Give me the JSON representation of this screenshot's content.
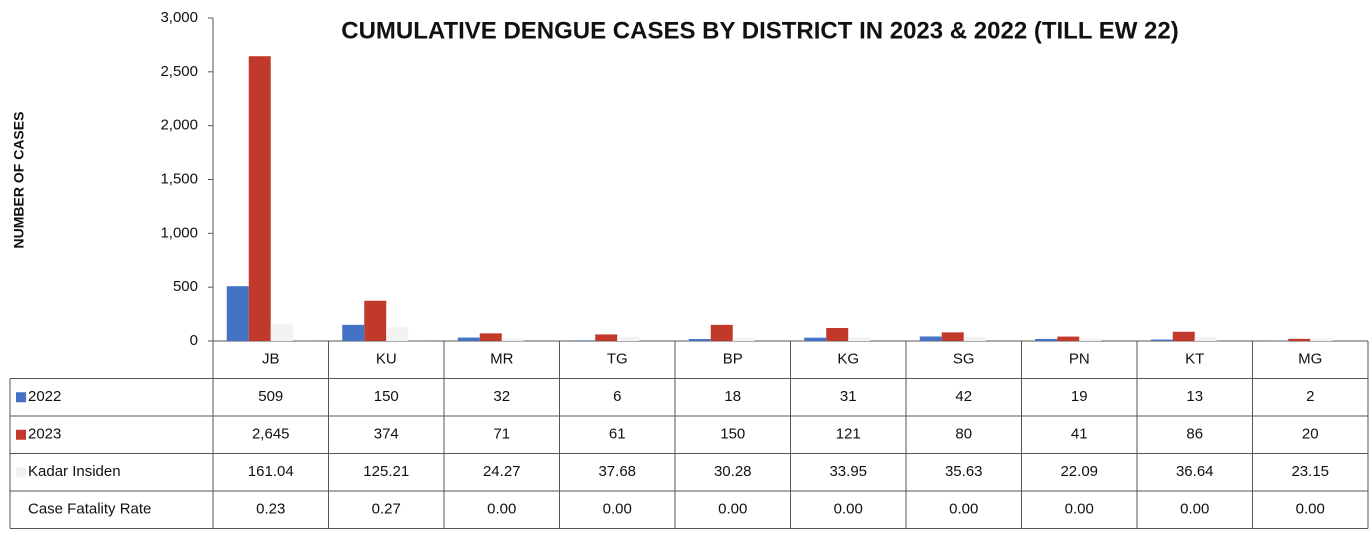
{
  "chart_data": {
    "type": "bar",
    "title": "CUMULATIVE DENGUE CASES BY DISTRICT IN 2023 & 2022 (TILL EW 22)",
    "y_label": "NUMBER OF CASES",
    "categories": [
      "JB",
      "KU",
      "MR",
      "TG",
      "BP",
      "KG",
      "SG",
      "PN",
      "KT",
      "MG"
    ],
    "series": [
      {
        "name": "2022",
        "color": "#4472c4",
        "values": [
          509,
          150,
          32,
          6,
          18,
          31,
          42,
          19,
          13,
          2
        ]
      },
      {
        "name": "2023",
        "color": "#c0392b",
        "values": [
          2645,
          374,
          71,
          61,
          150,
          121,
          80,
          41,
          86,
          20
        ],
        "value_labels": [
          "2,645",
          "374",
          "71",
          "61",
          "150",
          "121",
          "80",
          "41",
          "86",
          "20"
        ]
      },
      {
        "name": "Kadar Insiden",
        "color": "#f2f2f2",
        "values": [
          161.04,
          125.21,
          24.27,
          37.68,
          30.28,
          33.95,
          35.63,
          22.09,
          36.64,
          23.15
        ]
      },
      {
        "name": "Case Fatality Rate",
        "color": "#ffffff",
        "values": [
          0.23,
          0.27,
          0,
          0,
          0,
          0,
          0,
          0,
          0,
          0
        ],
        "value_labels": [
          "0.23",
          "0.27",
          "0.00",
          "0.00",
          "0.00",
          "0.00",
          "0.00",
          "0.00",
          "0.00",
          "0.00"
        ]
      }
    ],
    "ylim": [
      0,
      3000
    ],
    "yticks": [
      0,
      500,
      {
        "value": 1000,
        "label": "1,000"
      },
      {
        "value": 1500,
        "label": "1,500"
      },
      {
        "value": 2000,
        "label": "2,000"
      },
      {
        "value": 2500,
        "label": "2,500"
      },
      {
        "value": 3000,
        "label": "3,000"
      }
    ],
    "grid": false
  }
}
